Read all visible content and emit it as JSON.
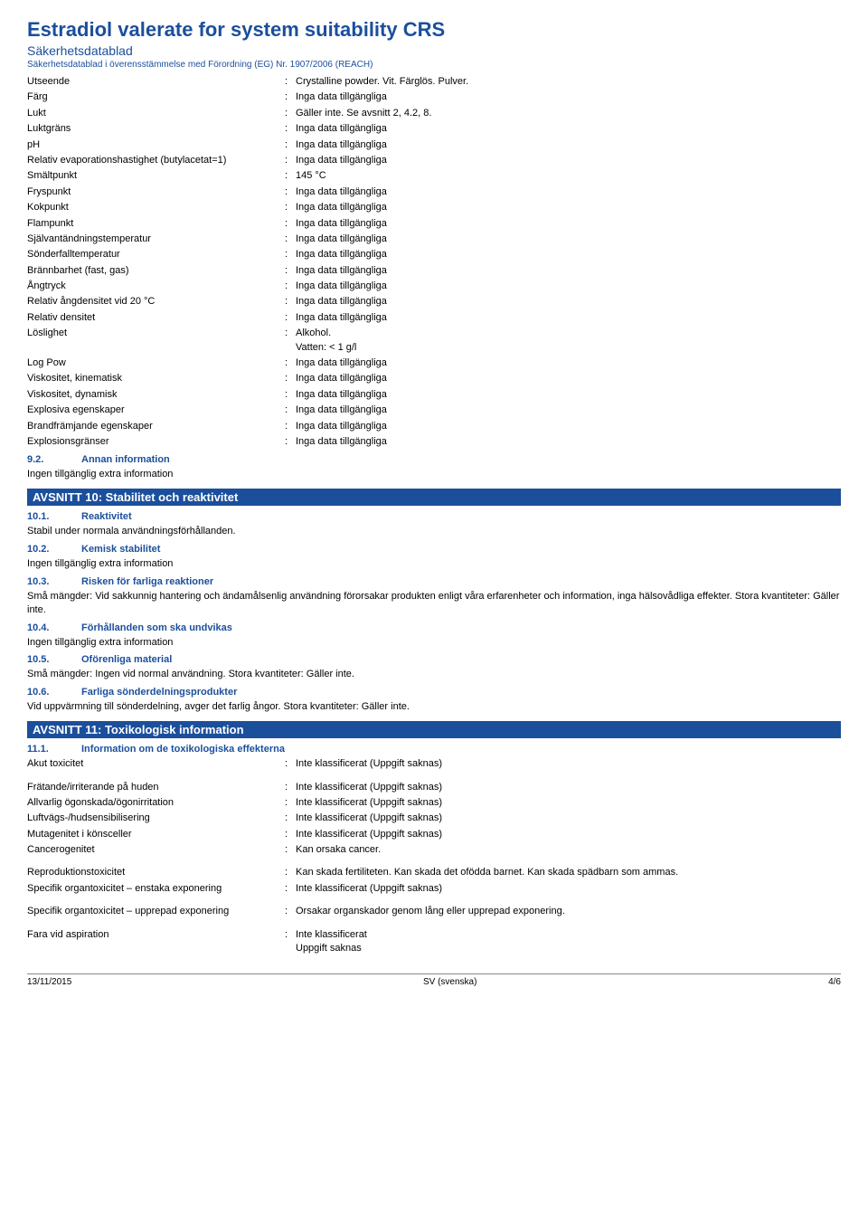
{
  "header": {
    "title": "Estradiol valerate for system suitability CRS",
    "subtitle": "Säkerhetsdatablad",
    "regulation": "Säkerhetsdatablad i överensstämmelse med Förordning (EG) Nr. 1907/2006 (REACH)"
  },
  "properties": [
    {
      "label": "Utseende",
      "value": "Crystalline powder. Vit. Färglös. Pulver."
    },
    {
      "label": "Färg",
      "value": "Inga data tillgängliga"
    },
    {
      "label": "Lukt",
      "value": "Gäller inte. Se avsnitt  2, 4.2, 8."
    },
    {
      "label": "Luktgräns",
      "value": "Inga data tillgängliga"
    },
    {
      "label": "pH",
      "value": "Inga data tillgängliga"
    },
    {
      "label": "Relativ evaporationshastighet (butylacetat=1)",
      "value": "Inga data tillgängliga"
    },
    {
      "label": "Smältpunkt",
      "value": "145 °C"
    },
    {
      "label": "Fryspunkt",
      "value": "Inga data tillgängliga"
    },
    {
      "label": "Kokpunkt",
      "value": "Inga data tillgängliga"
    },
    {
      "label": "Flampunkt",
      "value": "Inga data tillgängliga"
    },
    {
      "label": "Självantändningstemperatur",
      "value": "Inga data tillgängliga"
    },
    {
      "label": "Sönderfalltemperatur",
      "value": "Inga data tillgängliga"
    },
    {
      "label": "Brännbarhet (fast, gas)",
      "value": "Inga data tillgängliga"
    },
    {
      "label": "Ångtryck",
      "value": "Inga data tillgängliga"
    },
    {
      "label": "Relativ ångdensitet vid 20 °C",
      "value": "Inga data tillgängliga"
    },
    {
      "label": "Relativ densitet",
      "value": "Inga data tillgängliga"
    },
    {
      "label": "Löslighet",
      "value": "Alkohol.\nVatten: < 1 g/l"
    },
    {
      "label": "Log Pow",
      "value": "Inga data tillgängliga"
    },
    {
      "label": "Viskositet, kinematisk",
      "value": "Inga data tillgängliga"
    },
    {
      "label": "Viskositet, dynamisk",
      "value": "Inga data tillgängliga"
    },
    {
      "label": "Explosiva egenskaper",
      "value": "Inga data tillgängliga"
    },
    {
      "label": "Brandfrämjande egenskaper",
      "value": "Inga data tillgängliga"
    },
    {
      "label": "Explosionsgränser",
      "value": "Inga data tillgängliga"
    }
  ],
  "section9_2": {
    "num": "9.2.",
    "title": "Annan information",
    "body": "Ingen tillgänglig extra information"
  },
  "section10": {
    "banner": "AVSNITT 10: Stabilitet och reaktivitet",
    "subs": [
      {
        "num": "10.1.",
        "title": "Reaktivitet",
        "body": "Stabil under normala användningsförhållanden."
      },
      {
        "num": "10.2.",
        "title": "Kemisk stabilitet",
        "body": "Ingen tillgänglig extra information"
      },
      {
        "num": "10.3.",
        "title": "Risken för farliga reaktioner",
        "body": "Små mängder: Vid sakkunnig hantering och ändamålsenlig användning förorsakar produkten enligt våra erfarenheter och information, inga hälsovådliga effekter. Stora kvantiteter: Gäller inte."
      },
      {
        "num": "10.4.",
        "title": "Förhållanden som ska undvikas",
        "body": "Ingen tillgänglig extra information"
      },
      {
        "num": "10.5.",
        "title": "Oförenliga material",
        "body": "Små mängder: Ingen vid normal användning. Stora kvantiteter: Gäller inte."
      },
      {
        "num": "10.6.",
        "title": "Farliga sönderdelningsprodukter",
        "body": "Vid uppvärmning till sönderdelning, avger det farlig ångor. Stora kvantiteter: Gäller inte."
      }
    ]
  },
  "section11": {
    "banner": "AVSNITT 11: Toxikologisk information",
    "sub": {
      "num": "11.1.",
      "title": "Information om de toxikologiska effekterna"
    },
    "tox": [
      {
        "label": "Akut toxicitet",
        "value": "Inte klassificerat (Uppgift saknas)"
      },
      {
        "label": "Frätande/irriterande på huden",
        "value": "Inte klassificerat (Uppgift saknas)"
      },
      {
        "label": "Allvarlig ögonskada/ögonirritation",
        "value": "Inte klassificerat (Uppgift saknas)"
      },
      {
        "label": "Luftvägs-/hudsensibilisering",
        "value": "Inte klassificerat (Uppgift saknas)"
      },
      {
        "label": "Mutagenitet i könsceller",
        "value": "Inte klassificerat (Uppgift saknas)"
      },
      {
        "label": "Cancerogenitet",
        "value": "Kan orsaka cancer."
      },
      {
        "label": "Reproduktionstoxicitet",
        "value": "Kan skada fertiliteten. Kan skada det ofödda barnet. Kan skada spädbarn som ammas."
      },
      {
        "label": "Specifik organtoxicitet – enstaka exponering",
        "value": "Inte klassificerat (Uppgift saknas)"
      },
      {
        "label": "Specifik organtoxicitet – upprepad exponering",
        "value": "Orsakar organskador genom lång eller upprepad exponering."
      },
      {
        "label": "Fara vid aspiration",
        "value": "Inte klassificerat\nUppgift saknas"
      }
    ]
  },
  "footer": {
    "date": "13/11/2015",
    "lang": "SV (svenska)",
    "page": "4/6"
  },
  "colors": {
    "accent": "#1b4f9c",
    "banner_bg": "#1b4f9c",
    "banner_text": "#ffffff",
    "text": "#000000"
  }
}
